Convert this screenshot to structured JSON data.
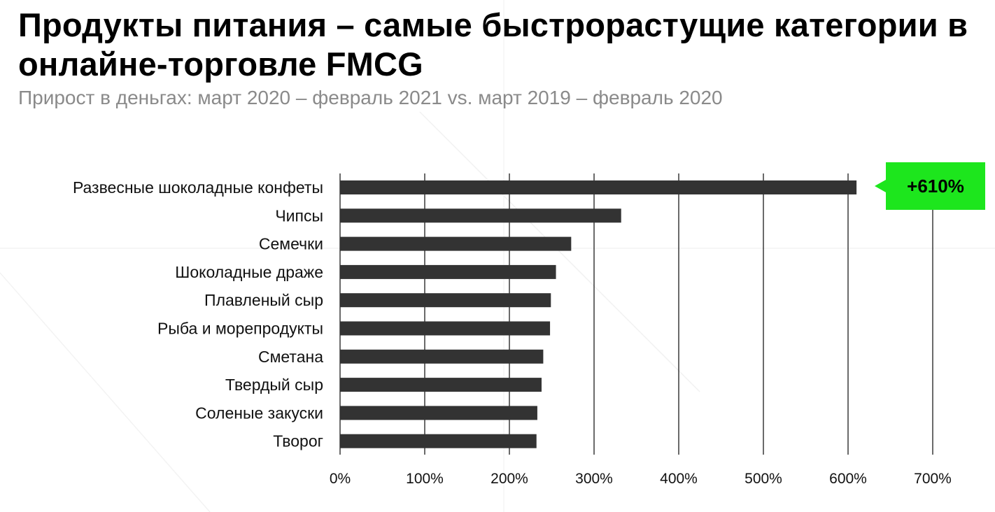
{
  "title": "Продукты питания – самые быстрорастущие категории в онлайне-торговле FMCG",
  "subtitle": "Прирост в деньгах: март 2020 – февраль 2021 vs. март 2019 – февраль 2020",
  "callout": "+610%",
  "colors": {
    "bar": "#333333",
    "gridline": "#1a1a1a",
    "callout": "#1de61d"
  },
  "chart_data": {
    "type": "bar",
    "orientation": "horizontal",
    "categories": [
      "Развесные шоколадные конфеты",
      "Чипсы",
      "Семечки",
      "Шоколадные драже",
      "Плавленый сыр",
      "Рыба и морепродукты",
      "Сметана",
      "Твердый сыр",
      "Соленые закуски",
      "Творог"
    ],
    "values": [
      610,
      332,
      273,
      255,
      249,
      248,
      240,
      238,
      233,
      232
    ],
    "unit": "%",
    "xlim": [
      0,
      700
    ],
    "xticks": [
      "0%",
      "100%",
      "200%",
      "300%",
      "400%",
      "500%",
      "600%",
      "700%"
    ],
    "grid": "vertical",
    "annotation": "+610%"
  }
}
